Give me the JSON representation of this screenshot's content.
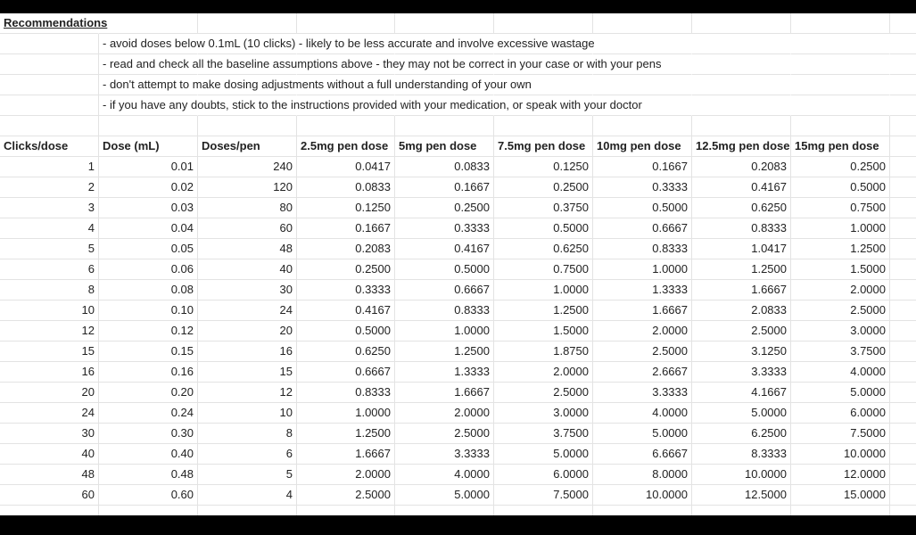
{
  "recommendations": {
    "title": "Recommendations",
    "items": [
      "- avoid doses below 0.1mL (10 clicks) - likely to be less accurate and involve excessive wastage",
      "- read and check all the baseline assumptions above - they may not be correct in your case or with your pens",
      "- don't attempt to make dosing adjustments without a full understanding of your own",
      "- if you have any doubts, stick to the instructions provided with your medication, or speak with your doctor"
    ]
  },
  "table": {
    "headers": [
      "Clicks/dose",
      "Dose (mL)",
      "Doses/pen",
      "2.5mg pen dose",
      "5mg pen dose",
      "7.5mg pen dose",
      "10mg pen dose",
      "12.5mg pen dose",
      "15mg pen dose"
    ],
    "rows": [
      [
        "1",
        "0.01",
        "240",
        "0.0417",
        "0.0833",
        "0.1250",
        "0.1667",
        "0.2083",
        "0.2500"
      ],
      [
        "2",
        "0.02",
        "120",
        "0.0833",
        "0.1667",
        "0.2500",
        "0.3333",
        "0.4167",
        "0.5000"
      ],
      [
        "3",
        "0.03",
        "80",
        "0.1250",
        "0.2500",
        "0.3750",
        "0.5000",
        "0.6250",
        "0.7500"
      ],
      [
        "4",
        "0.04",
        "60",
        "0.1667",
        "0.3333",
        "0.5000",
        "0.6667",
        "0.8333",
        "1.0000"
      ],
      [
        "5",
        "0.05",
        "48",
        "0.2083",
        "0.4167",
        "0.6250",
        "0.8333",
        "1.0417",
        "1.2500"
      ],
      [
        "6",
        "0.06",
        "40",
        "0.2500",
        "0.5000",
        "0.7500",
        "1.0000",
        "1.2500",
        "1.5000"
      ],
      [
        "8",
        "0.08",
        "30",
        "0.3333",
        "0.6667",
        "1.0000",
        "1.3333",
        "1.6667",
        "2.0000"
      ],
      [
        "10",
        "0.10",
        "24",
        "0.4167",
        "0.8333",
        "1.2500",
        "1.6667",
        "2.0833",
        "2.5000"
      ],
      [
        "12",
        "0.12",
        "20",
        "0.5000",
        "1.0000",
        "1.5000",
        "2.0000",
        "2.5000",
        "3.0000"
      ],
      [
        "15",
        "0.15",
        "16",
        "0.6250",
        "1.2500",
        "1.8750",
        "2.5000",
        "3.1250",
        "3.7500"
      ],
      [
        "16",
        "0.16",
        "15",
        "0.6667",
        "1.3333",
        "2.0000",
        "2.6667",
        "3.3333",
        "4.0000"
      ],
      [
        "20",
        "0.20",
        "12",
        "0.8333",
        "1.6667",
        "2.5000",
        "3.3333",
        "4.1667",
        "5.0000"
      ],
      [
        "24",
        "0.24",
        "10",
        "1.0000",
        "2.0000",
        "3.0000",
        "4.0000",
        "5.0000",
        "6.0000"
      ],
      [
        "30",
        "0.30",
        "8",
        "1.2500",
        "2.5000",
        "3.7500",
        "5.0000",
        "6.2500",
        "7.5000"
      ],
      [
        "40",
        "0.40",
        "6",
        "1.6667",
        "3.3333",
        "5.0000",
        "6.6667",
        "8.3333",
        "10.0000"
      ],
      [
        "48",
        "0.48",
        "5",
        "2.0000",
        "4.0000",
        "6.0000",
        "8.0000",
        "10.0000",
        "12.0000"
      ],
      [
        "60",
        "0.60",
        "4",
        "2.5000",
        "5.0000",
        "7.5000",
        "10.0000",
        "12.5000",
        "15.0000"
      ]
    ]
  }
}
